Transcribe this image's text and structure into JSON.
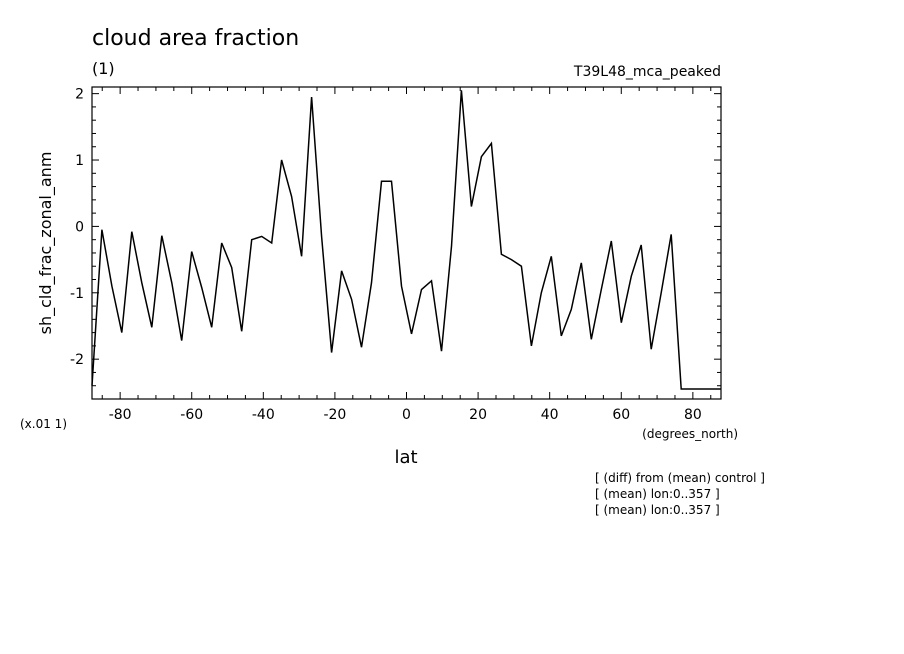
{
  "chart_data": {
    "type": "line",
    "title": "cloud area fraction",
    "units": "(1)",
    "run_label": "T39L48_mca_peaked",
    "xlabel": "lat",
    "xunits": "(degrees_north)",
    "ylabel": "sh_cld_frac_zonal_anm",
    "yscale_note": "(x.01 1)",
    "xlim": [
      -87.86,
      87.86
    ],
    "ylim": [
      -2.6,
      2.1
    ],
    "xticks": [
      -80,
      -60,
      -40,
      -20,
      0,
      20,
      40,
      60,
      80
    ],
    "xtick_labels": [
      "-80",
      "-60",
      "-40",
      "-20",
      "0",
      "20",
      "40",
      "60",
      "80"
    ],
    "yticks": [
      -2,
      -1,
      0,
      1,
      2
    ],
    "ytick_labels": [
      "-2",
      "-1",
      "0",
      "1",
      "2"
    ],
    "grid": false,
    "series": [
      {
        "x": [
          -87.86,
          -85.1,
          -82.31,
          -79.53,
          -76.74,
          -73.95,
          -71.16,
          -68.37,
          -65.58,
          -62.79,
          -60.0,
          -57.21,
          -54.42,
          -51.63,
          -48.84,
          -46.04,
          -43.25,
          -40.46,
          -37.67,
          -34.88,
          -32.09,
          -29.3,
          -26.51,
          -23.72,
          -20.93,
          -18.14,
          -15.35,
          -12.56,
          -9.77,
          -6.98,
          -4.19,
          -1.4,
          1.4,
          4.19,
          6.98,
          9.77,
          12.56,
          15.35,
          18.14,
          20.93,
          23.72,
          26.51,
          29.3,
          32.09,
          34.88,
          37.67,
          40.46,
          43.25,
          46.04,
          48.84,
          51.63,
          54.42,
          57.21,
          60.0,
          62.79,
          65.58,
          68.37,
          71.16,
          73.95,
          76.74,
          79.53,
          82.31,
          85.1,
          87.86
        ],
        "y": [
          -2.4,
          -0.05,
          -0.9,
          -1.6,
          -0.08,
          -0.85,
          -1.52,
          -0.14,
          -0.85,
          -1.72,
          -0.38,
          -0.92,
          -1.52,
          -0.25,
          -0.62,
          -1.58,
          -0.2,
          -0.15,
          -0.25,
          1.0,
          0.45,
          -0.45,
          1.95,
          -0.15,
          -1.9,
          -0.67,
          -1.1,
          -1.82,
          -0.85,
          0.68,
          0.68,
          -0.9,
          -1.62,
          -0.95,
          -0.82,
          -1.88,
          -0.3,
          2.05,
          0.3,
          1.05,
          1.25,
          -0.42,
          -0.5,
          -0.6,
          -1.8,
          -1.0,
          -0.45,
          -1.65,
          -1.25,
          -0.55,
          -1.7,
          -0.95,
          -0.22,
          -1.45,
          -0.75,
          -0.28,
          -1.85,
          -1.0,
          -0.12,
          -2.45,
          -2.45,
          -2.45,
          -2.45,
          -2.45
        ]
      }
    ]
  },
  "notes": [
    "[ (diff) from (mean) control ]",
    "[ (mean) lon:0..357 ]",
    "[ (mean) lon:0..357 ]"
  ]
}
